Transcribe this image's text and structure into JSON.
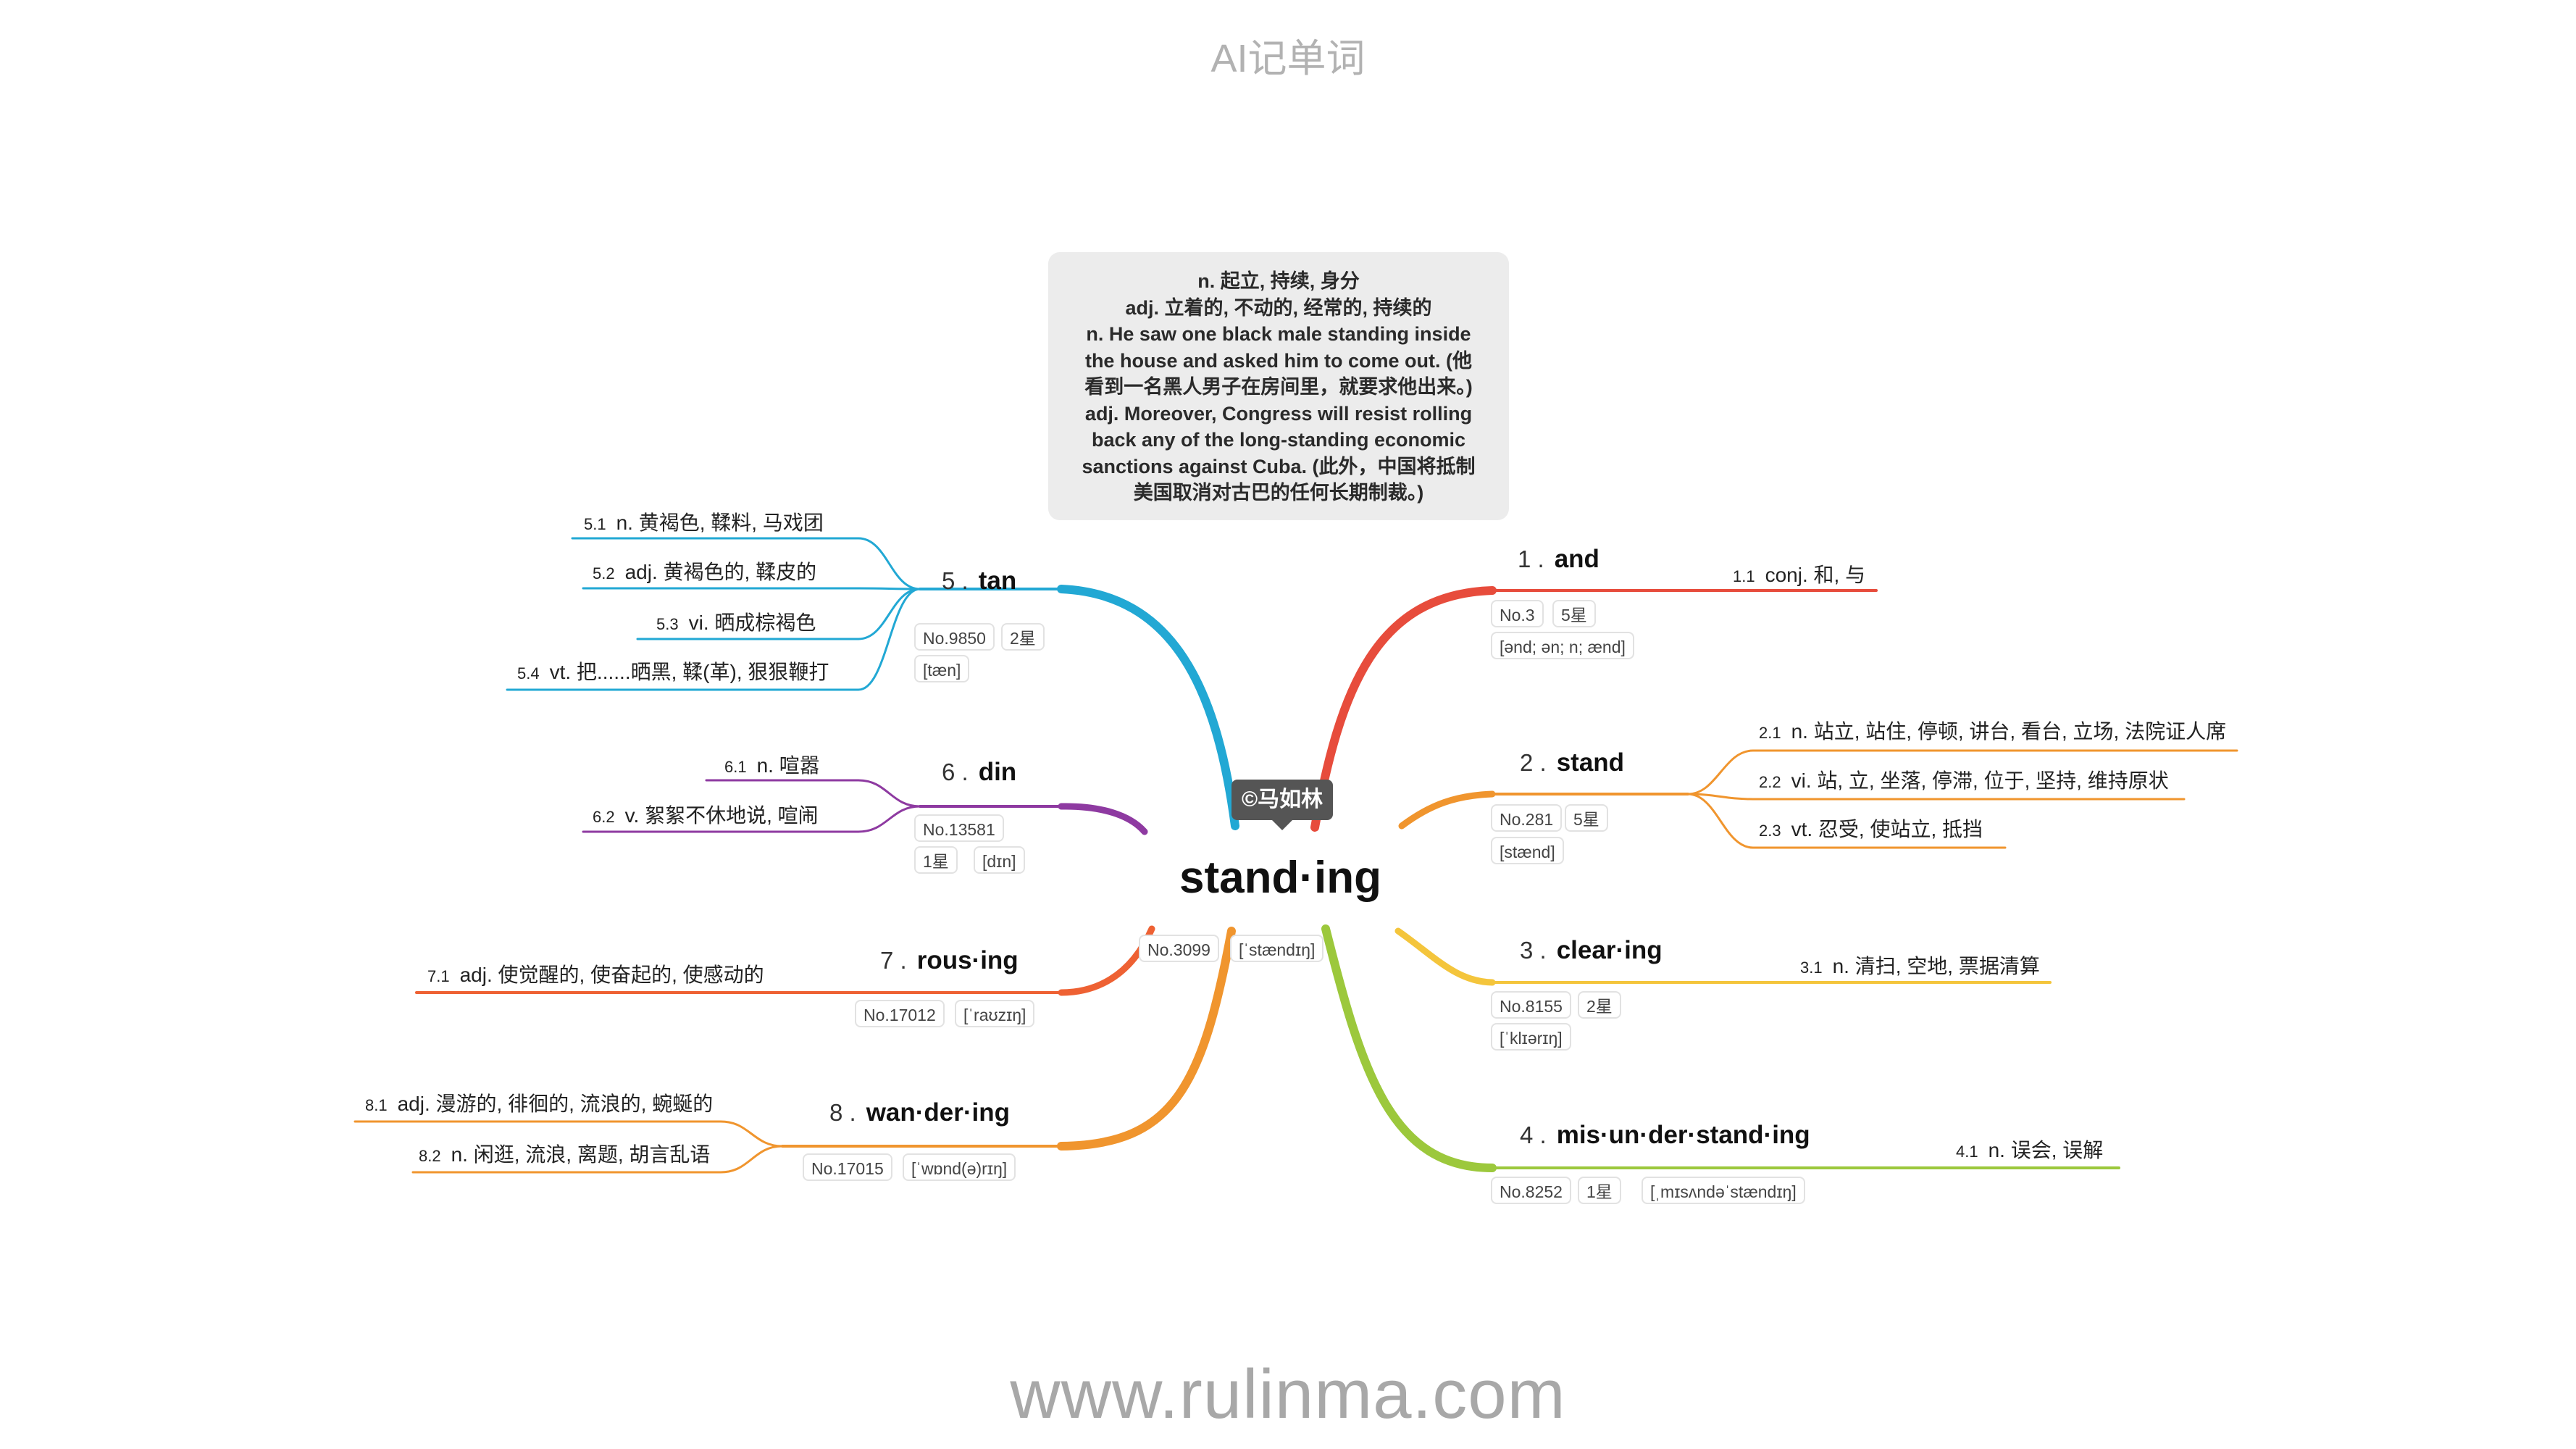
{
  "app_title": "AI记单词",
  "website": "www.rulinma.com",
  "copyright": "©马如林",
  "colors": {
    "red": "#e74c3c",
    "orange": "#f0952e",
    "yellow": "#f4c53c",
    "green": "#9cc83c",
    "blue": "#22a8d4",
    "purple": "#8e3aa1",
    "orange_red": "#ee6133"
  },
  "center": {
    "word": "stand·ing",
    "rank": "No.3099",
    "phonetic": "[ˈstændɪŋ]"
  },
  "note": {
    "lines": [
      "n. 起立, 持续, 身分",
      "adj. 立着的, 不动的, 经常的, 持续的",
      "n. He saw one black male standing inside",
      "the house and asked him to come out. (他",
      "看到一名黑人男子在房间里，就要求他出来。)",
      "adj. Moreover, Congress will resist rolling",
      "back any of the long-standing economic",
      "sanctions against Cuba. (此外，中国将抵制",
      "美国取消对古巴的任何长期制裁。)"
    ]
  },
  "branches": [
    {
      "num": "1 .",
      "word": "and",
      "rank": "No.3",
      "stars": "5星",
      "phonetic": "[ənd; ən; n; ænd]",
      "meanings": [
        {
          "num": "1.1",
          "text": "conj. 和, 与"
        }
      ]
    },
    {
      "num": "2 .",
      "word": "stand",
      "rank": "No.281",
      "stars": "5星",
      "phonetic": "[stænd]",
      "meanings": [
        {
          "num": "2.1",
          "text": "n. 站立, 站住, 停顿, 讲台, 看台, 立场, 法院证人席"
        },
        {
          "num": "2.2",
          "text": "vi. 站, 立, 坐落, 停滞, 位于, 坚持, 维持原状"
        },
        {
          "num": "2.3",
          "text": "vt. 忍受, 使站立, 抵挡"
        }
      ]
    },
    {
      "num": "3 .",
      "word": "clear·ing",
      "rank": "No.8155",
      "stars": "2星",
      "phonetic": "[ˈklɪərɪŋ]",
      "meanings": [
        {
          "num": "3.1",
          "text": "n. 清扫, 空地, 票据清算"
        }
      ]
    },
    {
      "num": "4 .",
      "word": "mis·un·der·stand·ing",
      "rank": "No.8252",
      "stars": "1星",
      "phonetic": "[ˌmɪsʌndəˈstændɪŋ]",
      "meanings": [
        {
          "num": "4.1",
          "text": "n. 误会, 误解"
        }
      ]
    },
    {
      "num": "5 .",
      "word": "tan",
      "rank": "No.9850",
      "stars": "2星",
      "phonetic": "[tæn]",
      "meanings": [
        {
          "num": "5.1",
          "text": "n. 黄褐色, 鞣料, 马戏团"
        },
        {
          "num": "5.2",
          "text": "adj. 黄褐色的, 鞣皮的"
        },
        {
          "num": "5.3",
          "text": "vi. 晒成棕褐色"
        },
        {
          "num": "5.4",
          "text": "vt. 把......晒黑, 鞣(革), 狠狠鞭打"
        }
      ]
    },
    {
      "num": "6 .",
      "word": "din",
      "rank": "No.13581",
      "stars": "1星",
      "phonetic": "[dɪn]",
      "meanings": [
        {
          "num": "6.1",
          "text": "n. 喧嚣"
        },
        {
          "num": "6.2",
          "text": "v. 絮絮不休地说, 喧闹"
        }
      ]
    },
    {
      "num": "7 .",
      "word": "rous·ing",
      "rank": "No.17012",
      "phonetic": "[ˈraʊzɪŋ]",
      "meanings": [
        {
          "num": "7.1",
          "text": "adj. 使觉醒的, 使奋起的, 使感动的"
        }
      ]
    },
    {
      "num": "8 .",
      "word": "wan·der·ing",
      "rank": "No.17015",
      "phonetic": "[ˈwɒnd(ə)rɪŋ]",
      "meanings": [
        {
          "num": "8.1",
          "text": "adj. 漫游的, 徘徊的, 流浪的, 蜿蜒的"
        },
        {
          "num": "8.2",
          "text": "n. 闲逛, 流浪, 离题, 胡言乱语"
        }
      ]
    }
  ]
}
